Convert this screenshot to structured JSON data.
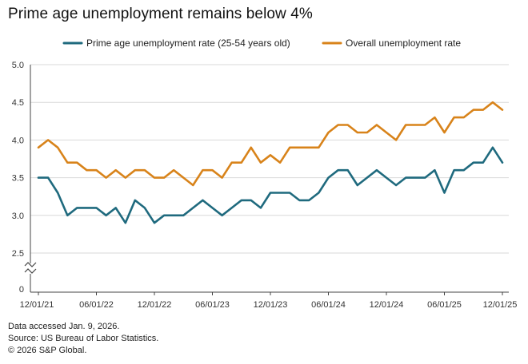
{
  "title": "Prime age unemployment remains below 4%",
  "footer": {
    "accessed": "Data accessed Jan. 9, 2026.",
    "source": "Source: US Bureau of Labor Statistics.",
    "copyright": "© 2026 S&P Global."
  },
  "colors": {
    "prime": "#1f6a7e",
    "overall": "#d8831a",
    "grid": "#d9d9d9",
    "axis": "#444444"
  },
  "chart_data": {
    "type": "line",
    "title": "Prime age unemployment remains below 4%",
    "xlabel": "",
    "ylabel": "",
    "ylim": [
      2.0,
      5.0
    ],
    "axis_break": true,
    "y_ticks": [
      "0",
      "2.5",
      "3.0",
      "3.5",
      "4.0",
      "4.5",
      "5.0"
    ],
    "x_ticks": [
      "12/01/21",
      "06/01/22",
      "12/01/22",
      "06/01/23",
      "12/01/23",
      "06/01/24",
      "12/01/24",
      "06/01/25",
      "12/01/25"
    ],
    "legend_position": "top",
    "x": [
      "12/21",
      "01/22",
      "02/22",
      "03/22",
      "04/22",
      "05/22",
      "06/22",
      "07/22",
      "08/22",
      "09/22",
      "10/22",
      "11/22",
      "12/22",
      "01/23",
      "02/23",
      "03/23",
      "04/23",
      "05/23",
      "06/23",
      "07/23",
      "08/23",
      "09/23",
      "10/23",
      "11/23",
      "12/23",
      "01/24",
      "02/24",
      "03/24",
      "04/24",
      "05/24",
      "06/24",
      "07/24",
      "08/24",
      "09/24",
      "10/24",
      "11/24",
      "12/24",
      "01/25",
      "02/25",
      "03/25",
      "04/25",
      "05/25",
      "06/25",
      "07/25",
      "08/25",
      "09/25",
      "10/25",
      "11/25",
      "12/25"
    ],
    "series": [
      {
        "name": "Prime age unemployment rate (25-54 years old)",
        "values": [
          3.5,
          3.5,
          3.3,
          3.0,
          3.1,
          3.1,
          3.1,
          3.0,
          3.1,
          2.9,
          3.2,
          3.1,
          2.9,
          3.0,
          3.0,
          3.0,
          3.1,
          3.2,
          3.1,
          3.0,
          3.1,
          3.2,
          3.2,
          3.1,
          3.3,
          3.3,
          3.3,
          3.2,
          3.2,
          3.3,
          3.5,
          3.6,
          3.6,
          3.4,
          3.5,
          3.6,
          3.5,
          3.4,
          3.5,
          3.5,
          3.5,
          3.6,
          3.3,
          3.6,
          3.6,
          3.7,
          3.7,
          3.9,
          3.7
        ]
      },
      {
        "name": "Overall unemployment rate",
        "values": [
          3.9,
          4.0,
          3.9,
          3.7,
          3.7,
          3.6,
          3.6,
          3.5,
          3.6,
          3.5,
          3.6,
          3.6,
          3.5,
          3.5,
          3.6,
          3.5,
          3.4,
          3.6,
          3.6,
          3.5,
          3.7,
          3.7,
          3.9,
          3.7,
          3.8,
          3.7,
          3.9,
          3.9,
          3.9,
          3.9,
          4.1,
          4.2,
          4.2,
          4.1,
          4.1,
          4.2,
          4.1,
          4.0,
          4.2,
          4.2,
          4.2,
          4.3,
          4.1,
          4.3,
          4.3,
          4.4,
          4.4,
          4.5,
          4.4
        ]
      }
    ]
  }
}
